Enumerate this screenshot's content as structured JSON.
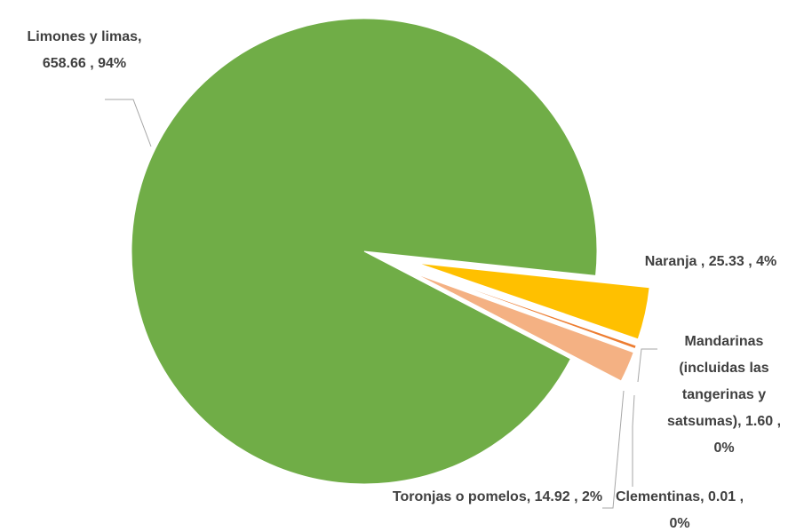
{
  "chart_data": {
    "type": "pie",
    "categories": [
      "Limones y limas",
      "Naranja",
      "Mandarinas (incluidas las tangerinas y satsumas)",
      "Clementinas",
      "Toronjas o pomelos"
    ],
    "values": [
      658.66,
      25.33,
      1.6,
      0.01,
      14.92
    ],
    "value_labels": [
      ",  658.66 , 94%",
      " ,  25.33 , 4%",
      ", 1.60 , 0%",
      ", 0.01 , 0%",
      ", 14.92 , 2%"
    ],
    "colors": [
      "#70ad47",
      "#ffc000",
      "#ed7d31",
      "#a5a5a5",
      "#f4b183"
    ]
  }
}
